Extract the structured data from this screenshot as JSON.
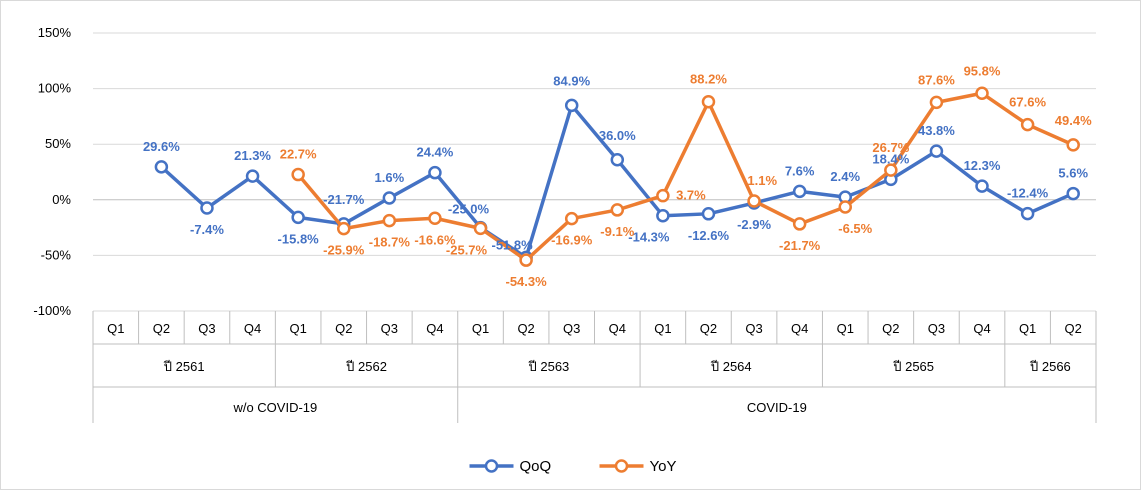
{
  "chart_data": {
    "type": "line",
    "y_axis": {
      "min": -100,
      "max": 150,
      "step": 50,
      "tick_labels": [
        "-100%",
        "-50%",
        "0%",
        "50%",
        "100%",
        "150%"
      ]
    },
    "x_axis": {
      "quarters": [
        "Q1",
        "Q2",
        "Q3",
        "Q4",
        "Q1",
        "Q2",
        "Q3",
        "Q4",
        "Q1",
        "Q2",
        "Q3",
        "Q4",
        "Q1",
        "Q2",
        "Q3",
        "Q4",
        "Q1",
        "Q2",
        "Q3",
        "Q4",
        "Q1",
        "Q2"
      ],
      "years": [
        {
          "label": "ปี 2561",
          "span": 4
        },
        {
          "label": "ปี 2562",
          "span": 4
        },
        {
          "label": "ปี 2563",
          "span": 4
        },
        {
          "label": "ปี 2564",
          "span": 4
        },
        {
          "label": "ปี 2565",
          "span": 4
        },
        {
          "label": "ปี 2566",
          "span": 2
        }
      ],
      "periods": [
        {
          "label": "w/o COVID-19",
          "span": 8
        },
        {
          "label": "COVID-19",
          "span": 14
        }
      ]
    },
    "series": [
      {
        "name": "QoQ",
        "color": "#4472c4",
        "values": [
          null,
          29.6,
          -7.4,
          21.3,
          -15.8,
          -21.7,
          1.6,
          24.4,
          -25.0,
          -51.8,
          84.9,
          36.0,
          -14.3,
          -12.6,
          -2.9,
          7.6,
          2.4,
          18.4,
          43.8,
          12.3,
          -12.4,
          5.6
        ],
        "labels": [
          null,
          "29.6%",
          "-7.4%",
          "21.3%",
          "-15.8%",
          "-21.7%",
          "1.6%",
          "24.4%",
          "-25.0%",
          "-51.8%",
          "84.9%",
          "36.0%",
          "-14.3%",
          "-12.6%",
          "-2.9%",
          "7.6%",
          "2.4%",
          "18.4%",
          "43.8%",
          "12.3%",
          "-12.4%",
          "5.6%"
        ]
      },
      {
        "name": "YoY",
        "color": "#ed7d31",
        "values": [
          null,
          null,
          null,
          null,
          22.7,
          -25.9,
          -18.7,
          -16.6,
          -25.7,
          -54.3,
          -16.9,
          -9.1,
          3.7,
          88.2,
          -1.1,
          -21.7,
          -6.5,
          26.7,
          87.6,
          95.8,
          67.6,
          49.4
        ],
        "labels": [
          null,
          null,
          null,
          null,
          "22.7%",
          "-25.9%",
          "-18.7%",
          "-16.6%",
          "-25.7%",
          "-54.3%",
          "-16.9%",
          "-9.1%",
          "3.7%",
          "88.2%",
          "-1.1%",
          "-21.7%",
          "-6.5%",
          "26.7%",
          "87.6%",
          "95.8%",
          "67.6%",
          "49.4%"
        ]
      }
    ],
    "legend": {
      "position": "bottom",
      "entries": [
        "QoQ",
        "YoY"
      ]
    }
  }
}
